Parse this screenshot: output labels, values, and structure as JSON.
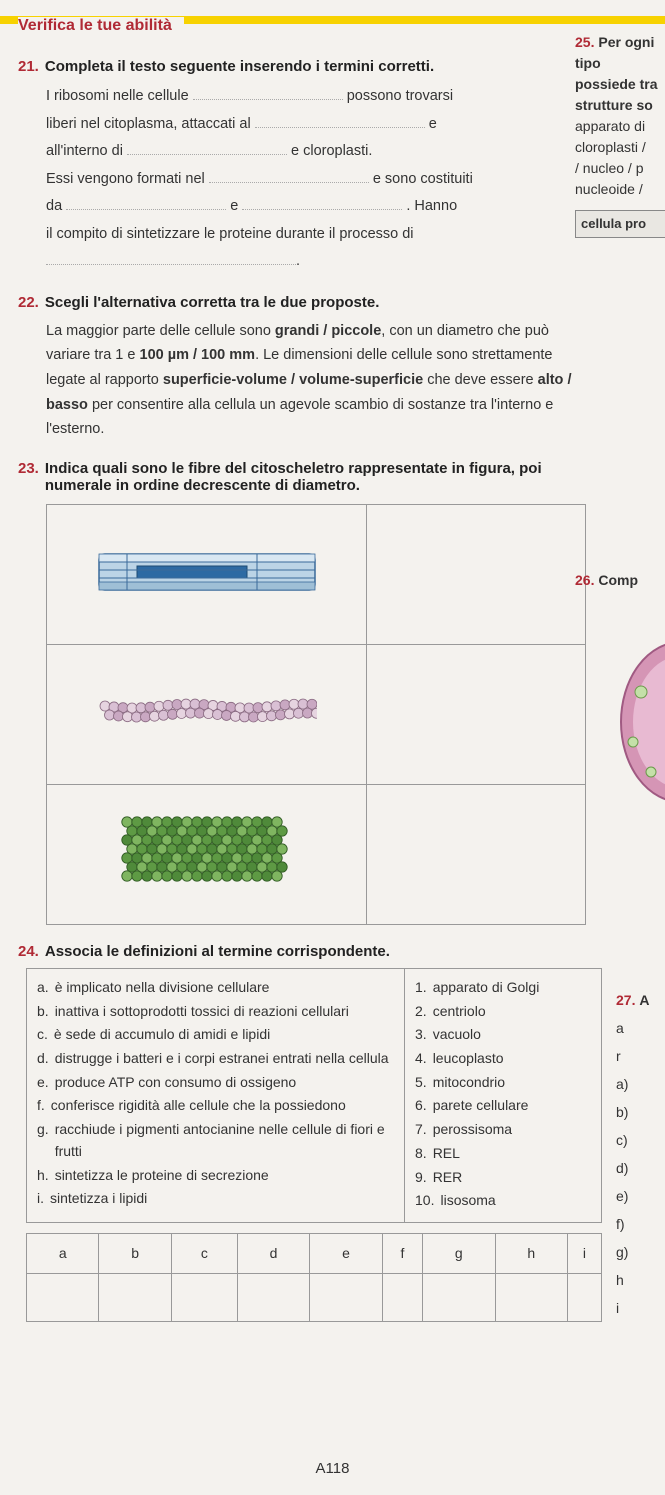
{
  "header": {
    "verify": "Verifica le tue abilità"
  },
  "q21": {
    "num": "21.",
    "title": "Completa il testo seguente inserendo i termini corretti.",
    "l1a": "I ribosomi nelle cellule",
    "l1b": "possono trovarsi",
    "l2a": "liberi nel citoplasma, attaccati al",
    "l2b": "e",
    "l3a": "all'interno di",
    "l3b": "e cloroplasti.",
    "l4a": "Essi vengono formati nel",
    "l4b": "e sono costituiti",
    "l5a": "da",
    "l5b": "e",
    "l5c": ". Hanno",
    "l6": "il compito di sintetizzare le proteine durante il processo di",
    "l7": ""
  },
  "q22": {
    "num": "22.",
    "title": "Scegli l'alternativa corretta tra le due proposte.",
    "body_parts": {
      "t1": "La maggior parte delle cellule sono ",
      "b1": "grandi / piccole",
      "t2": ", con un diametro che può variare tra 1 e ",
      "b2": "100 µm / 100 mm",
      "t3": ". Le dimensioni delle cellule sono strettamente legate al rapporto ",
      "b3": "superficie-volume / volume-superficie",
      "t4": " che deve essere ",
      "b4": "alto / basso",
      "t5": " per consentire alla cellula un agevole scambio di sostanze tra l'interno e l'esterno."
    }
  },
  "q23": {
    "num": "23.",
    "title": "Indica quali sono le fibre del citoscheletro rappresentate in figura, poi numerale in ordine decrescente di diametro.",
    "fibers": {
      "microtubule": {
        "colors": {
          "outline": "#3a6a9a",
          "fill1": "#bcd4e6",
          "fill2": "#2d6aa3"
        }
      },
      "intermediate": {
        "colors": {
          "bead1": "#e6d4e0",
          "bead2": "#c9a8c2",
          "outline": "#8a6a82"
        }
      },
      "microfilament": {
        "colors": {
          "bead1": "#7fb560",
          "bead2": "#4f8a3a",
          "outline": "#2f5a22"
        }
      }
    }
  },
  "q24": {
    "num": "24.",
    "title": "Associa le definizioni al termine corrispondente.",
    "left": [
      {
        "lbl": "a.",
        "txt": "è implicato nella divisione cellulare"
      },
      {
        "lbl": "b.",
        "txt": "inattiva i sottoprodotti tossici di reazioni cellulari"
      },
      {
        "lbl": "c.",
        "txt": "è sede di accumulo di amidi e lipidi"
      },
      {
        "lbl": "d.",
        "txt": "distrugge i batteri e i corpi estranei entrati nella cellula"
      },
      {
        "lbl": "e.",
        "txt": "produce ATP con consumo di ossigeno"
      },
      {
        "lbl": "f.",
        "txt": "conferisce rigidità alle cellule che la possiedono"
      },
      {
        "lbl": "g.",
        "txt": "racchiude i pigmenti antocianine nelle cellule di fiori e frutti"
      },
      {
        "lbl": "h.",
        "txt": "sintetizza le proteine di secrezione"
      },
      {
        "lbl": "i.",
        "txt": "sintetizza i lipidi"
      }
    ],
    "right": [
      {
        "lbl": "1.",
        "txt": "apparato di Golgi"
      },
      {
        "lbl": "2.",
        "txt": "centriolo"
      },
      {
        "lbl": "3.",
        "txt": "vacuolo"
      },
      {
        "lbl": "4.",
        "txt": "leucoplasto"
      },
      {
        "lbl": "5.",
        "txt": "mitocondrio"
      },
      {
        "lbl": "6.",
        "txt": "parete cellulare"
      },
      {
        "lbl": "7.",
        "txt": "perossisoma"
      },
      {
        "lbl": "8.",
        "txt": "REL"
      },
      {
        "lbl": "9.",
        "txt": "RER"
      },
      {
        "lbl": "10.",
        "txt": "lisosoma"
      }
    ],
    "grid_heads": [
      "a",
      "b",
      "c",
      "d",
      "e",
      "f",
      "g",
      "h",
      "i"
    ]
  },
  "right_col": {
    "q25num": "25.",
    "q25l1": "Per ogni tipo",
    "q25l2": "possiede tra",
    "q25l3": "strutture so",
    "q25l4": "apparato di",
    "q25l5": "cloroplasti /",
    "q25l6": "/ nucleo / p",
    "q25l7": "nucleoide /",
    "cellbox": "cellula pro",
    "q26num": "26.",
    "q26t": "Comp",
    "q27num": "27.",
    "q27t": "A",
    "letters": [
      "a",
      "r",
      "a)",
      "b)",
      "c)",
      "d)",
      "e)",
      "f)",
      "g)",
      "h",
      "i"
    ]
  },
  "page_num": "A118"
}
